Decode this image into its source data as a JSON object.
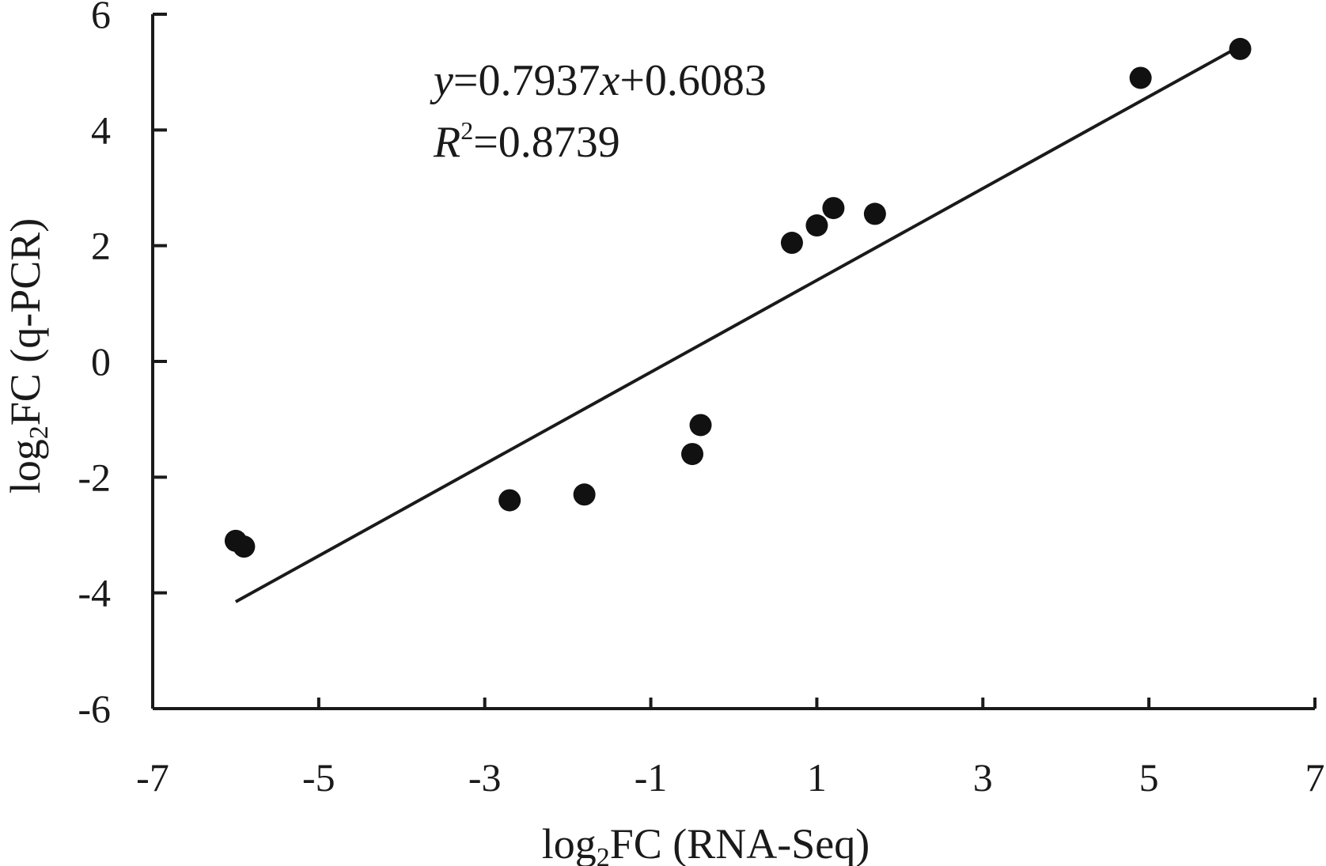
{
  "chart_data": {
    "type": "scatter",
    "title": "",
    "xlabel": {
      "pre": "log",
      "sub": "2",
      "post": "FC (RNA-Seq)"
    },
    "ylabel": {
      "pre": "log",
      "sub": "2",
      "post": "FC (q-PCR)"
    },
    "xlim": [
      -7,
      7
    ],
    "ylim": [
      -6,
      6
    ],
    "xticks": [
      -7,
      -5,
      -3,
      -1,
      1,
      3,
      5,
      7
    ],
    "yticks": [
      -6,
      -4,
      -2,
      0,
      2,
      4,
      6
    ],
    "grid": false,
    "legend": "none",
    "colors": {
      "ink": "#1a1a1a",
      "points": "#111111"
    },
    "series": [
      {
        "x": [
          -6.0,
          -5.9,
          -2.7,
          -1.8,
          -0.5,
          -0.4,
          0.7,
          1.0,
          1.2,
          1.7,
          4.9,
          6.1
        ],
        "y": [
          -3.1,
          -3.2,
          -2.4,
          -2.3,
          -1.6,
          -1.1,
          2.05,
          2.35,
          2.65,
          2.55,
          4.9,
          5.4
        ]
      }
    ],
    "trendline": {
      "slope": 0.7937,
      "intercept": 0.6083,
      "x_range": [
        -6.0,
        6.1
      ]
    },
    "annotations": {
      "equation": {
        "y": "y",
        "eq_mid": "=0.7937",
        "x": "x",
        "eq_tail": "+0.6083"
      },
      "r_squared": {
        "r": "R",
        "sup": "2",
        "tail": "=0.8739"
      }
    }
  }
}
